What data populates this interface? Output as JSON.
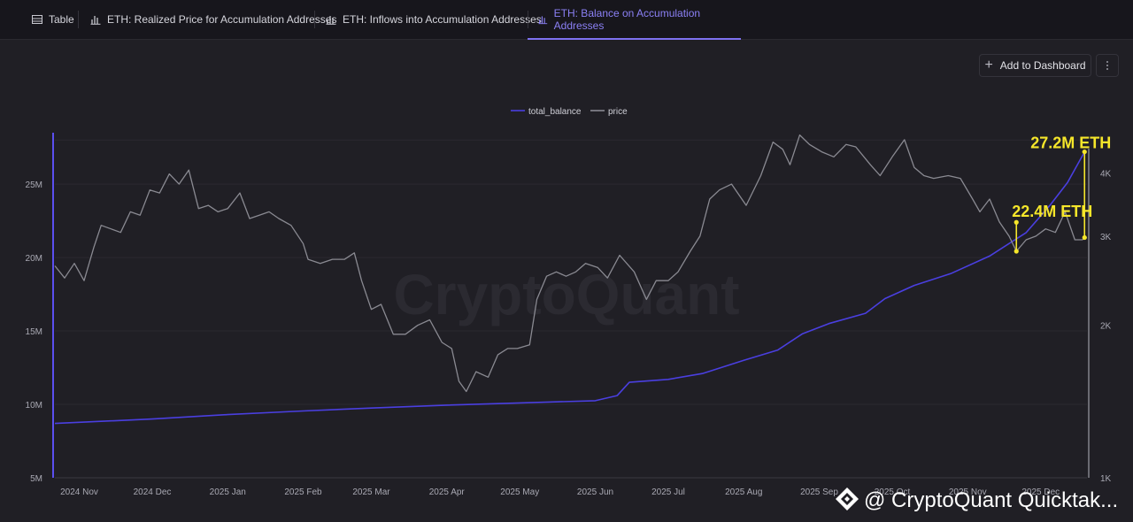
{
  "tabs": [
    {
      "label": "Table",
      "icon": "table-icon"
    },
    {
      "label": "ETH: Realized Price for Accumulation Addresses",
      "icon": "bar-chart-icon"
    },
    {
      "label": "ETH: Inflows into Accumulation Addresses",
      "icon": "bar-chart-icon"
    },
    {
      "label": "ETH: Balance on Accumulation Addresses",
      "icon": "bar-chart-icon",
      "active": true
    }
  ],
  "toolbar": {
    "add_label": "Add to Dashboard"
  },
  "chart_data": {
    "type": "line",
    "legend": {
      "placement": "top-center",
      "entries": [
        "total_balance",
        "price"
      ]
    },
    "x_ticks": [
      "2024 Nov",
      "2024 Dec",
      "2025 Jan",
      "2025 Feb",
      "2025 Mar",
      "2025 Apr",
      "2025 May",
      "2025 Jun",
      "2025 Jul",
      "2025 Aug",
      "2025 Sep",
      "2025 Oct",
      "2025 Nov",
      "2025 Dec"
    ],
    "x_range": [
      "2024-10-22",
      "2025-12-20"
    ],
    "y_left": {
      "ticks": [
        "5M",
        "10M",
        "15M",
        "20M",
        "25M"
      ],
      "range": [
        5,
        28.5
      ],
      "unit": "M ETH"
    },
    "y_right": {
      "ticks": [
        "1K",
        "2K",
        "3K",
        "4K"
      ],
      "range": [
        1000,
        4800
      ],
      "scale": "log"
    },
    "series": [
      {
        "name": "total_balance",
        "axis": "left",
        "color": "#4a3fe0",
        "points": [
          [
            "2024-10-22",
            8.7
          ],
          [
            "2024-12-01",
            9.0
          ],
          [
            "2025-01-01",
            9.3
          ],
          [
            "2025-02-01",
            9.55
          ],
          [
            "2025-03-01",
            9.75
          ],
          [
            "2025-04-01",
            9.95
          ],
          [
            "2025-05-01",
            10.1
          ],
          [
            "2025-06-01",
            10.25
          ],
          [
            "2025-06-10",
            10.6
          ],
          [
            "2025-06-15",
            11.5
          ],
          [
            "2025-07-01",
            11.7
          ],
          [
            "2025-07-15",
            12.1
          ],
          [
            "2025-08-01",
            13.0
          ],
          [
            "2025-08-15",
            13.7
          ],
          [
            "2025-08-25",
            14.8
          ],
          [
            "2025-09-05",
            15.5
          ],
          [
            "2025-09-20",
            16.2
          ],
          [
            "2025-09-28",
            17.2
          ],
          [
            "2025-10-10",
            18.1
          ],
          [
            "2025-10-25",
            18.9
          ],
          [
            "2025-11-10",
            20.1
          ],
          [
            "2025-11-25",
            21.7
          ],
          [
            "2025-12-05",
            23.6
          ],
          [
            "2025-12-12",
            25.1
          ],
          [
            "2025-12-19",
            27.2
          ]
        ]
      },
      {
        "name": "price",
        "axis": "right",
        "color": "#8a8a92",
        "points": [
          [
            "2024-10-22",
            2620
          ],
          [
            "2024-10-26",
            2480
          ],
          [
            "2024-10-30",
            2650
          ],
          [
            "2024-11-03",
            2450
          ],
          [
            "2024-11-07",
            2850
          ],
          [
            "2024-11-10",
            3150
          ],
          [
            "2024-11-14",
            3100
          ],
          [
            "2024-11-18",
            3050
          ],
          [
            "2024-11-22",
            3350
          ],
          [
            "2024-11-26",
            3300
          ],
          [
            "2024-11-30",
            3700
          ],
          [
            "2024-12-04",
            3650
          ],
          [
            "2024-12-08",
            3980
          ],
          [
            "2024-12-12",
            3800
          ],
          [
            "2024-12-16",
            4050
          ],
          [
            "2024-12-20",
            3400
          ],
          [
            "2024-12-24",
            3450
          ],
          [
            "2024-12-28",
            3350
          ],
          [
            "2025-01-01",
            3400
          ],
          [
            "2025-01-06",
            3650
          ],
          [
            "2025-01-10",
            3250
          ],
          [
            "2025-01-14",
            3300
          ],
          [
            "2025-01-18",
            3350
          ],
          [
            "2025-01-22",
            3250
          ],
          [
            "2025-01-27",
            3150
          ],
          [
            "2025-02-01",
            2900
          ],
          [
            "2025-02-03",
            2700
          ],
          [
            "2025-02-08",
            2650
          ],
          [
            "2025-02-13",
            2700
          ],
          [
            "2025-02-18",
            2700
          ],
          [
            "2025-02-22",
            2780
          ],
          [
            "2025-02-25",
            2450
          ],
          [
            "2025-03-01",
            2150
          ],
          [
            "2025-03-05",
            2200
          ],
          [
            "2025-03-10",
            1920
          ],
          [
            "2025-03-15",
            1920
          ],
          [
            "2025-03-20",
            2000
          ],
          [
            "2025-03-25",
            2050
          ],
          [
            "2025-03-30",
            1850
          ],
          [
            "2025-04-03",
            1800
          ],
          [
            "2025-04-06",
            1550
          ],
          [
            "2025-04-09",
            1480
          ],
          [
            "2025-04-13",
            1620
          ],
          [
            "2025-04-18",
            1580
          ],
          [
            "2025-04-22",
            1750
          ],
          [
            "2025-04-26",
            1800
          ],
          [
            "2025-04-30",
            1800
          ],
          [
            "2025-05-05",
            1830
          ],
          [
            "2025-05-08",
            2250
          ],
          [
            "2025-05-12",
            2500
          ],
          [
            "2025-05-16",
            2550
          ],
          [
            "2025-05-20",
            2500
          ],
          [
            "2025-05-24",
            2550
          ],
          [
            "2025-05-28",
            2650
          ],
          [
            "2025-06-02",
            2600
          ],
          [
            "2025-06-06",
            2480
          ],
          [
            "2025-06-11",
            2750
          ],
          [
            "2025-06-17",
            2550
          ],
          [
            "2025-06-22",
            2250
          ],
          [
            "2025-06-26",
            2450
          ],
          [
            "2025-07-01",
            2450
          ],
          [
            "2025-07-05",
            2550
          ],
          [
            "2025-07-10",
            2800
          ],
          [
            "2025-07-14",
            3000
          ],
          [
            "2025-07-18",
            3550
          ],
          [
            "2025-07-22",
            3700
          ],
          [
            "2025-07-27",
            3800
          ],
          [
            "2025-08-02",
            3450
          ],
          [
            "2025-08-08",
            3950
          ],
          [
            "2025-08-13",
            4600
          ],
          [
            "2025-08-17",
            4450
          ],
          [
            "2025-08-20",
            4150
          ],
          [
            "2025-08-24",
            4750
          ],
          [
            "2025-08-28",
            4550
          ],
          [
            "2025-09-02",
            4400
          ],
          [
            "2025-09-07",
            4300
          ],
          [
            "2025-09-12",
            4550
          ],
          [
            "2025-09-16",
            4500
          ],
          [
            "2025-09-22",
            4150
          ],
          [
            "2025-09-26",
            3950
          ],
          [
            "2025-10-01",
            4300
          ],
          [
            "2025-10-06",
            4650
          ],
          [
            "2025-10-10",
            4100
          ],
          [
            "2025-10-14",
            3950
          ],
          [
            "2025-10-18",
            3900
          ],
          [
            "2025-10-24",
            3950
          ],
          [
            "2025-10-29",
            3900
          ],
          [
            "2025-11-03",
            3550
          ],
          [
            "2025-11-06",
            3350
          ],
          [
            "2025-11-10",
            3550
          ],
          [
            "2025-11-14",
            3200
          ],
          [
            "2025-11-18",
            3000
          ],
          [
            "2025-11-21",
            2800
          ],
          [
            "2025-11-25",
            2950
          ],
          [
            "2025-11-29",
            3000
          ],
          [
            "2025-12-03",
            3100
          ],
          [
            "2025-12-07",
            3050
          ],
          [
            "2025-12-11",
            3350
          ],
          [
            "2025-12-15",
            2950
          ],
          [
            "2025-12-18",
            2950
          ],
          [
            "2025-12-20",
            2980
          ]
        ]
      }
    ],
    "annotations": [
      {
        "text": "22.4M ETH",
        "color": "#f5e62a",
        "x": "2025-11-21",
        "from_price": 2800,
        "to_balance": 22.4
      },
      {
        "text": "27.2M ETH",
        "color": "#f5e62a",
        "x": "2025-12-19",
        "from_price": 2980,
        "to_balance": 27.2
      }
    ],
    "watermark": "CryptoQuant",
    "footer_credit": "@ CryptoQuant Quicktak..."
  }
}
